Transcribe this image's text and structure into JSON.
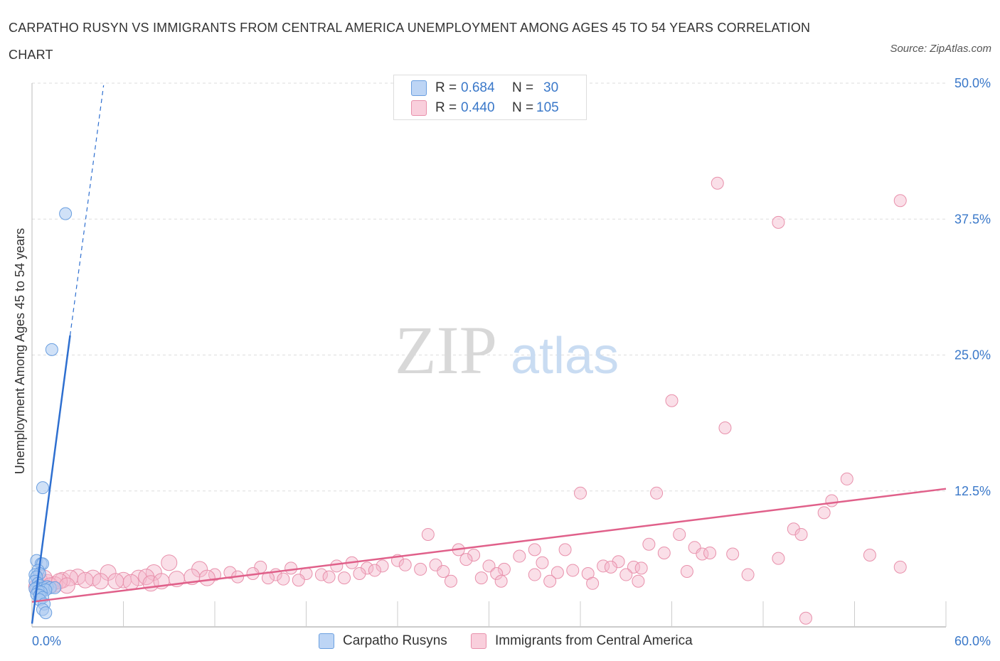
{
  "title": "CARPATHO RUSYN VS IMMIGRANTS FROM CENTRAL AMERICA UNEMPLOYMENT AMONG AGES 45 TO 54 YEARS CORRELATION CHART",
  "source": "Source: ZipAtlas.com",
  "watermark": {
    "zip": "ZIP",
    "atlas": "atlas"
  },
  "legend": {
    "series1": {
      "r_label": "R =",
      "r_value": "0.684",
      "n_label": "N =",
      "n_value": "30"
    },
    "series2": {
      "r_label": "R =",
      "r_value": "0.440",
      "n_label": "N =",
      "n_value": "105"
    }
  },
  "colors": {
    "blue_fill": "#a9c8f0",
    "blue_stroke": "#6a9fe0",
    "blue_line": "#2e6fd0",
    "pink_fill": "#f5b8cb",
    "pink_stroke": "#e890ab",
    "pink_line": "#e0608a",
    "axis_text": "#3a78c9",
    "grid": "#dddddd"
  },
  "chart_data": {
    "type": "scatter",
    "title": "CARPATHO RUSYN VS IMMIGRANTS FROM CENTRAL AMERICA UNEMPLOYMENT AMONG AGES 45 TO 54 YEARS CORRELATION CHART",
    "xlabel": "",
    "ylabel": "Unemployment Among Ages 45 to 54 years",
    "xlim": [
      0,
      60
    ],
    "ylim": [
      0,
      50
    ],
    "x_tick_labels": [
      "0.0%",
      "60.0%"
    ],
    "y_ticks": [
      12.5,
      25.0,
      37.5,
      50.0
    ],
    "y_tick_labels": [
      "12.5%",
      "25.0%",
      "37.5%",
      "50.0%"
    ],
    "series": [
      {
        "name": "Carpatho Rusyns",
        "color": "blue",
        "points": [
          [
            2.2,
            38.0
          ],
          [
            1.3,
            25.5
          ],
          [
            0.7,
            12.8
          ],
          [
            0.3,
            6.1
          ],
          [
            0.6,
            5.8
          ],
          [
            0.7,
            5.8
          ],
          [
            0.4,
            5.2
          ],
          [
            0.5,
            4.9
          ],
          [
            0.2,
            4.8
          ],
          [
            0.3,
            4.6
          ],
          [
            0.2,
            4.2
          ],
          [
            0.4,
            4.0
          ],
          [
            0.5,
            3.8
          ],
          [
            0.3,
            3.6
          ],
          [
            0.2,
            3.5
          ],
          [
            0.6,
            3.5
          ],
          [
            0.8,
            3.6
          ],
          [
            1.0,
            3.7
          ],
          [
            1.2,
            3.6
          ],
          [
            1.5,
            3.6
          ],
          [
            0.9,
            3.4
          ],
          [
            0.4,
            3.3
          ],
          [
            0.6,
            3.2
          ],
          [
            0.3,
            3.0
          ],
          [
            0.5,
            2.9
          ],
          [
            0.7,
            2.7
          ],
          [
            0.5,
            2.5
          ],
          [
            0.8,
            2.1
          ],
          [
            0.7,
            1.6
          ],
          [
            0.9,
            1.3
          ]
        ],
        "trend": {
          "x": [
            0,
            2.5
          ],
          "y": [
            0.3,
            26.8
          ]
        },
        "trend_dashed": {
          "x": [
            2.5,
            4.7
          ],
          "y": [
            26.8,
            49.8
          ]
        }
      },
      {
        "name": "Immigrants from Central America",
        "color": "pink",
        "points": [
          [
            45.0,
            40.8
          ],
          [
            57.0,
            39.2
          ],
          [
            49.0,
            37.2
          ],
          [
            42.0,
            20.8
          ],
          [
            45.5,
            18.3
          ],
          [
            53.5,
            13.6
          ],
          [
            36.0,
            12.3
          ],
          [
            41.0,
            12.3
          ],
          [
            52.5,
            11.6
          ],
          [
            52.0,
            10.5
          ],
          [
            50.0,
            9.0
          ],
          [
            50.5,
            8.5
          ],
          [
            26.0,
            8.5
          ],
          [
            42.5,
            8.5
          ],
          [
            40.5,
            7.6
          ],
          [
            43.5,
            7.3
          ],
          [
            28.0,
            7.1
          ],
          [
            35.0,
            7.1
          ],
          [
            33.0,
            7.1
          ],
          [
            29.0,
            6.6
          ],
          [
            32.0,
            6.5
          ],
          [
            41.5,
            6.8
          ],
          [
            44.0,
            6.7
          ],
          [
            44.5,
            6.8
          ],
          [
            46.0,
            6.7
          ],
          [
            55.0,
            6.6
          ],
          [
            49.0,
            6.3
          ],
          [
            9.0,
            5.9
          ],
          [
            21.0,
            5.9
          ],
          [
            28.5,
            6.2
          ],
          [
            24.0,
            6.1
          ],
          [
            33.5,
            5.9
          ],
          [
            38.5,
            6.0
          ],
          [
            15.0,
            5.5
          ],
          [
            20.0,
            5.6
          ],
          [
            24.5,
            5.7
          ],
          [
            26.5,
            5.7
          ],
          [
            30.0,
            5.6
          ],
          [
            37.5,
            5.6
          ],
          [
            38.0,
            5.5
          ],
          [
            39.5,
            5.5
          ],
          [
            40.0,
            5.4
          ],
          [
            57.0,
            5.5
          ],
          [
            17.0,
            5.4
          ],
          [
            23.0,
            5.6
          ],
          [
            22.0,
            5.4
          ],
          [
            25.5,
            5.3
          ],
          [
            31.0,
            5.3
          ],
          [
            35.5,
            5.2
          ],
          [
            11.0,
            5.3
          ],
          [
            13.0,
            5.0
          ],
          [
            5.0,
            5.0
          ],
          [
            8.0,
            5.0
          ],
          [
            10.5,
            4.6
          ],
          [
            12.0,
            4.8
          ],
          [
            14.5,
            4.9
          ],
          [
            16.0,
            4.8
          ],
          [
            18.0,
            4.9
          ],
          [
            19.0,
            4.8
          ],
          [
            21.5,
            4.9
          ],
          [
            22.5,
            5.2
          ],
          [
            27.0,
            5.1
          ],
          [
            30.5,
            4.9
          ],
          [
            33.0,
            4.8
          ],
          [
            34.5,
            5.0
          ],
          [
            36.5,
            4.9
          ],
          [
            39.0,
            4.8
          ],
          [
            43.0,
            5.1
          ],
          [
            47.0,
            4.8
          ],
          [
            3.0,
            4.6
          ],
          [
            4.0,
            4.5
          ],
          [
            6.0,
            4.3
          ],
          [
            7.0,
            4.5
          ],
          [
            7.5,
            4.6
          ],
          [
            9.5,
            4.4
          ],
          [
            11.5,
            4.5
          ],
          [
            13.5,
            4.6
          ],
          [
            15.5,
            4.5
          ],
          [
            16.5,
            4.4
          ],
          [
            17.5,
            4.3
          ],
          [
            19.5,
            4.6
          ],
          [
            20.5,
            4.5
          ],
          [
            2.0,
            4.3
          ],
          [
            2.5,
            4.5
          ],
          [
            3.5,
            4.3
          ],
          [
            4.5,
            4.2
          ],
          [
            5.5,
            4.2
          ],
          [
            6.5,
            4.1
          ],
          [
            7.8,
            4.0
          ],
          [
            8.5,
            4.2
          ],
          [
            1.0,
            4.1
          ],
          [
            1.5,
            3.9
          ],
          [
            0.5,
            4.3
          ],
          [
            0.8,
            4.5
          ],
          [
            1.2,
            3.8
          ],
          [
            0.3,
            3.7
          ],
          [
            1.8,
            4.2
          ],
          [
            2.3,
            3.8
          ],
          [
            27.5,
            4.2
          ],
          [
            30.8,
            4.2
          ],
          [
            34.0,
            4.2
          ],
          [
            36.8,
            4.0
          ],
          [
            39.8,
            4.2
          ],
          [
            29.5,
            4.5
          ],
          [
            50.8,
            0.8
          ]
        ],
        "trend": {
          "x": [
            0,
            60
          ],
          "y": [
            2.3,
            12.7
          ]
        }
      }
    ]
  },
  "bottom_legend": {
    "series1": "Carpatho Rusyns",
    "series2": "Immigrants from Central America"
  }
}
